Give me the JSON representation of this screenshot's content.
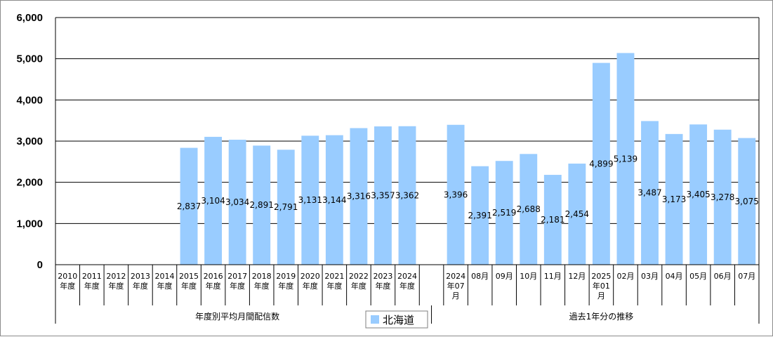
{
  "chart_data": {
    "type": "bar",
    "ylim": [
      0,
      6000
    ],
    "y_ticks": [
      "0",
      "1,000",
      "2,000",
      "3,000",
      "4,000",
      "5,000",
      "6,000"
    ],
    "grid": true,
    "legend_position": "bottom-center",
    "series": [
      {
        "name": "北海道",
        "color": "#99ccff"
      }
    ],
    "groups": [
      {
        "label": "年度別平均月間配信数",
        "categories": [
          [
            "2010",
            "年度"
          ],
          [
            "2011",
            "年度"
          ],
          [
            "2012",
            "年度"
          ],
          [
            "2013",
            "年度"
          ],
          [
            "2014",
            "年度"
          ],
          [
            "2015",
            "年度"
          ],
          [
            "2016",
            "年度"
          ],
          [
            "2017",
            "年度"
          ],
          [
            "2018",
            "年度"
          ],
          [
            "2019",
            "年度"
          ],
          [
            "2020",
            "年度"
          ],
          [
            "2021",
            "年度"
          ],
          [
            "2022",
            "年度"
          ],
          [
            "2023",
            "年度"
          ],
          [
            "2024",
            "年度"
          ]
        ],
        "values": [
          null,
          null,
          null,
          null,
          null,
          2837,
          3104,
          3034,
          2891,
          2791,
          3131,
          3144,
          3316,
          3357,
          3362
        ],
        "value_labels": [
          "",
          "",
          "",
          "",
          "",
          "2,837",
          "3,104",
          "3,034",
          "2,891",
          "2,791",
          "3,131",
          "3,144",
          "3,316",
          "3,357",
          "3,362"
        ]
      },
      {
        "label": "過去1年分の推移",
        "categories": [
          [
            "2024",
            "年07",
            "月"
          ],
          [
            "08月"
          ],
          [
            "09月"
          ],
          [
            "10月"
          ],
          [
            "11月"
          ],
          [
            "12月"
          ],
          [
            "2025",
            "年01",
            "月"
          ],
          [
            "02月"
          ],
          [
            "03月"
          ],
          [
            "04月"
          ],
          [
            "05月"
          ],
          [
            "06月"
          ],
          [
            "07月"
          ]
        ],
        "values": [
          3396,
          2391,
          2519,
          2688,
          2181,
          2454,
          4899,
          5139,
          3487,
          3173,
          3405,
          3278,
          3075
        ],
        "value_labels": [
          "3,396",
          "2,391",
          "2,519",
          "2,688",
          "2,181",
          "2,454",
          "4,899",
          "5,139",
          "3,487",
          "3,173",
          "3,405",
          "3,278",
          "3,075"
        ]
      }
    ]
  }
}
